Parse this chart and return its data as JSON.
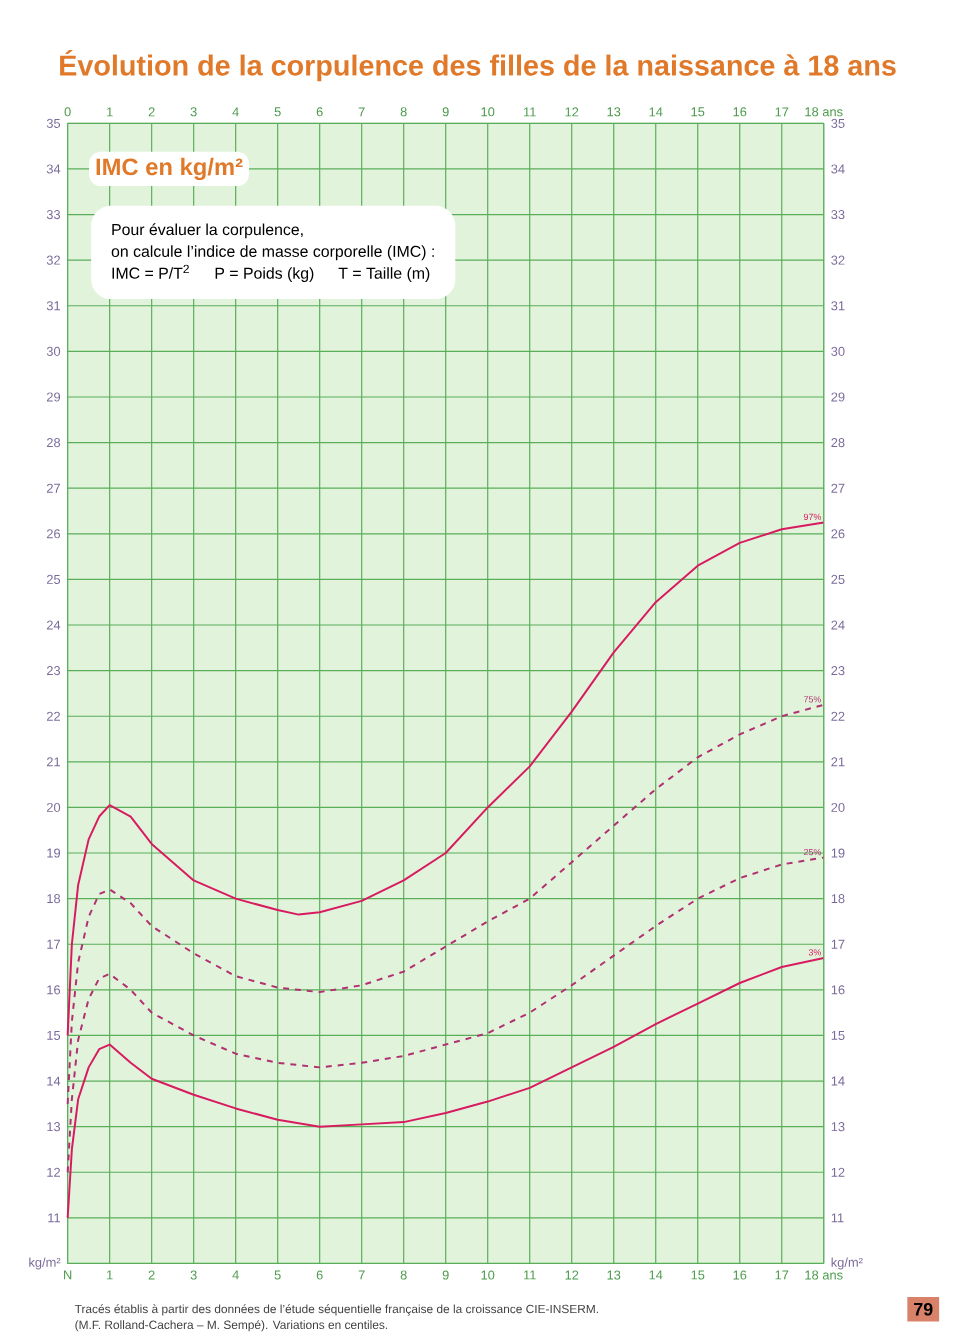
{
  "chart_data": {
    "type": "line",
    "title": "Évolution de la corpulence des filles de la naissance à 18 ans",
    "ylabel": "IMC en kg/m²",
    "annotations": [
      "Pour évaluer la corpulence,",
      "on calcule l’indice de masse corporelle (IMC) :",
      "IMC = P/T$^{2}$",
      "P = Poids (kg)",
      "T = Taille (m)",
      "Tracés établis à partir des données de l’étude séquentielle française de la croissance CIE-INSERM.",
      "(M.F. Rolland-Cachera – M. Sempé). Variations en centiles.",
      "79"
    ],
    "xlim": [
      0,
      18
    ],
    "xticks": [
      {
        "value": 0,
        "label": "N"
      },
      1,
      2,
      3,
      4,
      5,
      6,
      7,
      8,
      9,
      10,
      11,
      12,
      13,
      14,
      15,
      16,
      17,
      {
        "value": 18,
        "label": "18 ans"
      }
    ],
    "x2lim": [
      0,
      18
    ],
    "x2ticks": [
      0,
      1,
      2,
      3,
      4,
      5,
      6,
      7,
      8,
      9,
      10,
      11,
      12,
      13,
      14,
      15,
      16,
      17,
      {
        "value": 18,
        "label": "18 ans"
      }
    ],
    "ylim": [
      10,
      35
    ],
    "yticks": [
      {
        "value": 10,
        "label": "kg/m²"
      },
      11,
      12,
      13,
      14,
      15,
      16,
      17,
      18,
      19,
      20,
      21,
      22,
      23,
      24,
      25,
      26,
      27,
      28,
      29,
      30,
      31,
      32,
      33,
      34,
      35
    ],
    "y2lim": [
      10,
      35
    ],
    "y2ticks": [
      {
        "value": 10,
        "label": "kg/m²"
      },
      11,
      12,
      13,
      14,
      15,
      16,
      17,
      18,
      19,
      20,
      21,
      22,
      23,
      24,
      25,
      26,
      27,
      28,
      29,
      30,
      31,
      32,
      33,
      34,
      35
    ],
    "grid": true,
    "marker": "none",
    "series": [
      {
        "name": "97%",
        "color": "#d81b60",
        "line_style": "solid",
        "x": [
          0,
          0.1,
          0.25,
          0.5,
          0.75,
          1,
          1.5,
          2,
          3,
          4,
          5,
          5.5,
          6,
          7,
          8,
          9,
          10,
          11,
          12,
          13,
          14,
          15,
          16,
          17,
          18
        ],
        "values": [
          15.0,
          17.0,
          18.3,
          19.3,
          19.8,
          20.05,
          19.8,
          19.2,
          18.4,
          18.0,
          17.75,
          17.65,
          17.7,
          17.95,
          18.4,
          19.0,
          20.0,
          20.9,
          22.1,
          23.4,
          24.5,
          25.3,
          25.8,
          26.1,
          26.25
        ]
      },
      {
        "name": "75%",
        "color": "#b03070",
        "line_style": "dashed",
        "x": [
          0,
          0.1,
          0.25,
          0.5,
          0.75,
          1,
          1.5,
          2,
          3,
          4,
          5,
          6,
          7,
          8,
          9,
          10,
          11,
          12,
          13,
          14,
          15,
          16,
          17,
          18
        ],
        "values": [
          13.5,
          15.3,
          16.6,
          17.6,
          18.1,
          18.2,
          17.9,
          17.4,
          16.8,
          16.3,
          16.05,
          15.95,
          16.1,
          16.4,
          16.95,
          17.5,
          18.0,
          18.8,
          19.6,
          20.4,
          21.1,
          21.6,
          22.0,
          22.25
        ]
      },
      {
        "name": "25%",
        "color": "#b03070",
        "line_style": "dashed",
        "x": [
          0,
          0.1,
          0.25,
          0.5,
          0.75,
          1,
          1.5,
          2,
          3,
          4,
          5,
          6,
          7,
          8,
          9,
          10,
          11,
          12,
          13,
          14,
          15,
          16,
          17,
          18
        ],
        "values": [
          12.0,
          13.6,
          14.9,
          15.8,
          16.25,
          16.35,
          16.0,
          15.5,
          15.0,
          14.6,
          14.4,
          14.3,
          14.4,
          14.55,
          14.8,
          15.05,
          15.5,
          16.1,
          16.75,
          17.4,
          18.0,
          18.45,
          18.75,
          18.9
        ]
      },
      {
        "name": "3%",
        "color": "#d81b60",
        "line_style": "solid",
        "x": [
          0,
          0.1,
          0.25,
          0.5,
          0.75,
          1,
          1.5,
          2,
          3,
          4,
          5,
          6,
          7,
          8,
          9,
          10,
          11,
          12,
          13,
          14,
          15,
          16,
          17,
          18
        ],
        "values": [
          11.0,
          12.5,
          13.6,
          14.3,
          14.7,
          14.8,
          14.4,
          14.05,
          13.7,
          13.4,
          13.15,
          13.0,
          13.05,
          13.1,
          13.3,
          13.55,
          13.85,
          14.3,
          14.75,
          15.25,
          15.7,
          16.15,
          16.5,
          16.7
        ]
      }
    ]
  }
}
